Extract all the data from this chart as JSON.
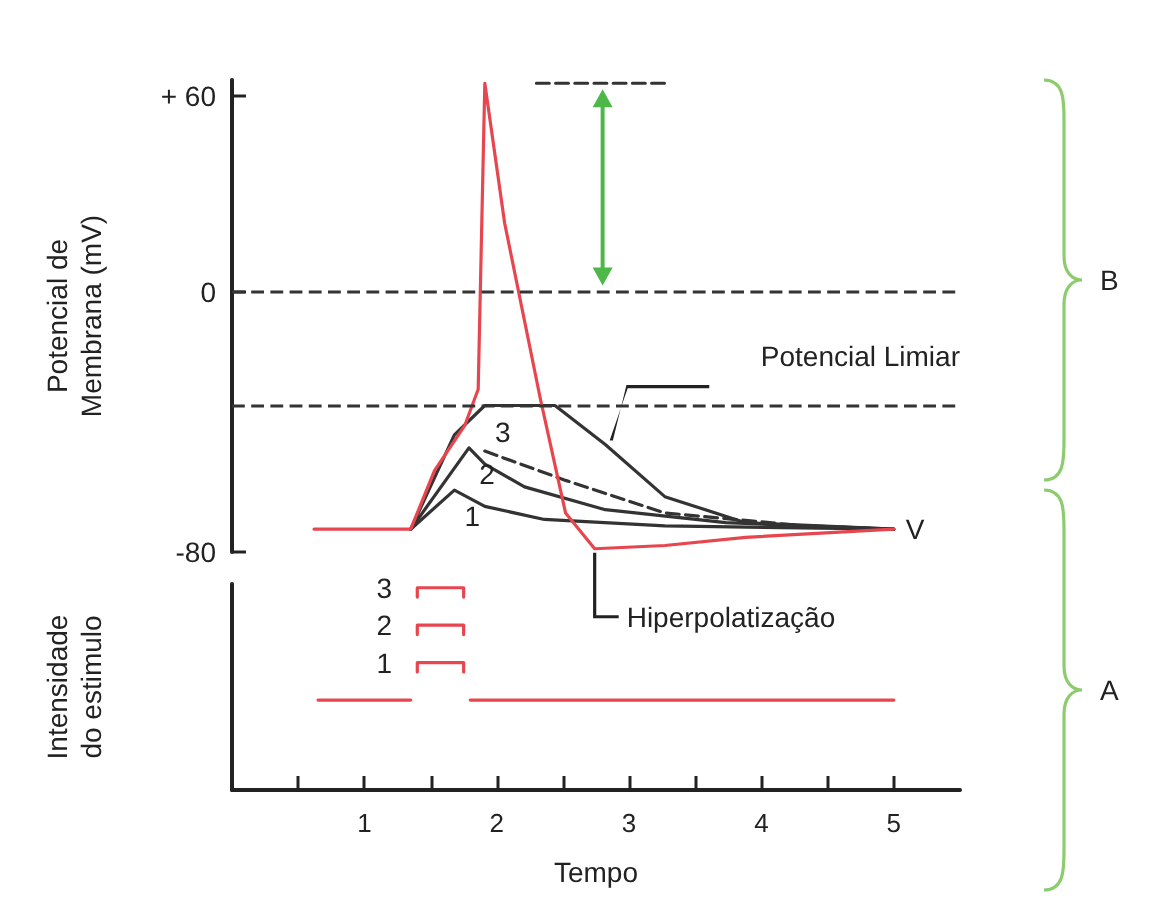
{
  "chart_data": [
    {
      "type": "line",
      "ylabel": "Potencial de Membrana (mV)",
      "xlim": [
        0,
        5.5
      ],
      "ylim": [
        -80,
        65
      ],
      "yticks": [
        {
          "value": 60,
          "label": "+ 60"
        },
        0,
        -80
      ],
      "tick_labels": "y",
      "marker": "none",
      "line_style": "solid",
      "series": [
        {
          "color": "#333333",
          "line_style": "dashed",
          "x": [
            2.3,
            3.3
          ],
          "values": [
            64,
            64
          ]
        },
        {
          "name": "1",
          "color": "#333333",
          "x": [
            1.35,
            1.68,
            1.91,
            2.36,
            3.27,
            5
          ],
          "values": [
            -73,
            -61,
            -66,
            -70,
            -72,
            -73
          ]
        },
        {
          "name": "2",
          "color": "#333333",
          "x": [
            1.35,
            1.79,
            1.91,
            2.21,
            2.82,
            3.73,
            5
          ],
          "values": [
            -73,
            -48,
            -53,
            -60,
            -67,
            -71,
            -73
          ]
        },
        {
          "color": "#333333",
          "line_style": "dashed",
          "x": [
            1.91,
            2.52,
            3.27,
            4.33,
            5
          ],
          "values": [
            -49,
            -58,
            -68,
            -72,
            -73
          ]
        },
        {
          "name": "3",
          "color": "#333333",
          "x": [
            1.35,
            1.68,
            1.91,
            2.44,
            2.82,
            3.27,
            3.88,
            5
          ],
          "values": [
            -73,
            -44,
            -35,
            -35,
            -47,
            -63,
            -71,
            -73
          ]
        },
        {
          "color": "#e8464f",
          "x": [
            0.62,
            1.35,
            1.53,
            1.76,
            1.86,
            1.91,
            2.06,
            2.33,
            2.52,
            2.74,
            3.27,
            3.88,
            5
          ],
          "values": [
            -73,
            -73,
            -55,
            -41,
            -30,
            64,
            21,
            -33,
            -68,
            -79,
            -78,
            -75.5,
            -73
          ]
        }
      ],
      "ref_lines": [
        {
          "axis": "y",
          "value": 0,
          "color": "#333333",
          "line_style": "dashed"
        },
        {
          "axis": "y",
          "value": -35,
          "label": "Potencial Limiar",
          "color": "#333333",
          "line_style": "dashed"
        }
      ],
      "annotations": [
        {
          "text": "Hiperpolatização",
          "x": 2.74,
          "y": -79
        },
        "V",
        "B"
      ]
    },
    {
      "type": "line",
      "xlabel": "Tempo",
      "ylabel": "Intensidade do estimulo",
      "ylim": [
        -2.4,
        3.1
      ],
      "yticks": [
        1,
        2,
        3
      ],
      "xlim": [
        0,
        5.5
      ],
      "xticks": [
        {
          "value": 0.5,
          "label": null
        },
        1,
        {
          "value": 1.5,
          "label": null
        },
        2,
        {
          "value": 2.5,
          "label": null
        },
        3,
        {
          "value": 3.5,
          "label": null
        },
        4,
        {
          "value": 4.5,
          "label": null
        },
        5
      ],
      "marker": "none",
      "series": [
        {
          "color": "#e8464f",
          "x": [
            0.65,
            1.35,
            1.55,
            1.8,
            5
          ],
          "values": [
            0,
            0,
            null,
            0,
            0
          ]
        },
        {
          "color": "#e8464f",
          "x": [
            1.4,
            1.4,
            1.75,
            1.75
          ],
          "values": [
            0.75,
            1,
            1,
            0.75
          ]
        },
        {
          "color": "#e8464f",
          "x": [
            1.4,
            1.4,
            1.75,
            1.75
          ],
          "values": [
            1.75,
            2,
            2,
            1.75
          ]
        },
        {
          "color": "#e8464f",
          "x": [
            1.4,
            1.4,
            1.75,
            1.75
          ],
          "values": [
            2.75,
            3,
            3,
            2.75
          ]
        }
      ],
      "annotations": [
        "A"
      ]
    }
  ]
}
